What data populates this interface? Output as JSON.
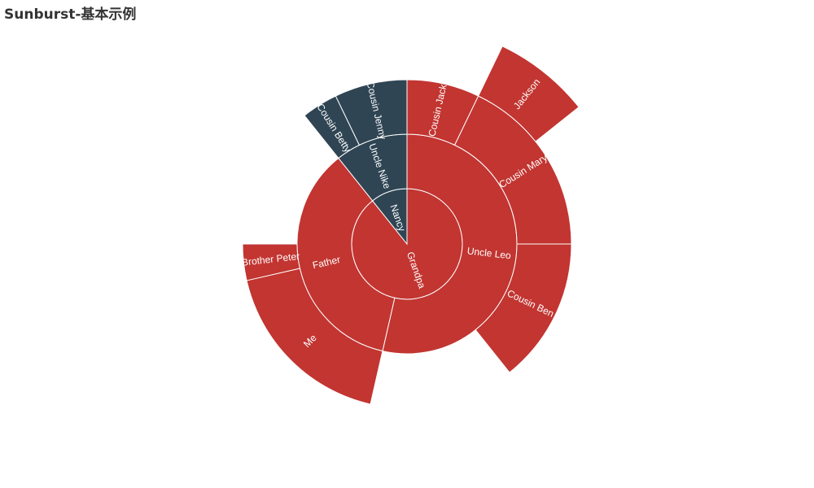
{
  "chart_data": {
    "type": "sunburst",
    "title": "Sunburst-基本示例",
    "colors": {
      "primary": "#c23531",
      "secondary": "#2f4554",
      "border": "#ffffff"
    },
    "data": [
      {
        "name": "Grandpa",
        "children": [
          {
            "name": "Uncle Leo",
            "value": 15,
            "children": [
              {
                "name": "Cousin Jack",
                "value": 2
              },
              {
                "name": "Cousin Mary",
                "value": 5,
                "children": [
                  {
                    "name": "Jackson",
                    "value": 2
                  }
                ]
              },
              {
                "name": "Cousin Ben",
                "value": 4
              }
            ]
          },
          {
            "name": "Father",
            "value": 10,
            "children": [
              {
                "name": "Me",
                "value": 5
              },
              {
                "name": "Brother Peter",
                "value": 1
              }
            ]
          }
        ]
      },
      {
        "name": "Nancy",
        "children": [
          {
            "name": "Uncle Nike",
            "children": [
              {
                "name": "Cousin Betty",
                "value": 1
              },
              {
                "name": "Cousin Jenny",
                "value": 2
              }
            ]
          }
        ]
      }
    ]
  }
}
